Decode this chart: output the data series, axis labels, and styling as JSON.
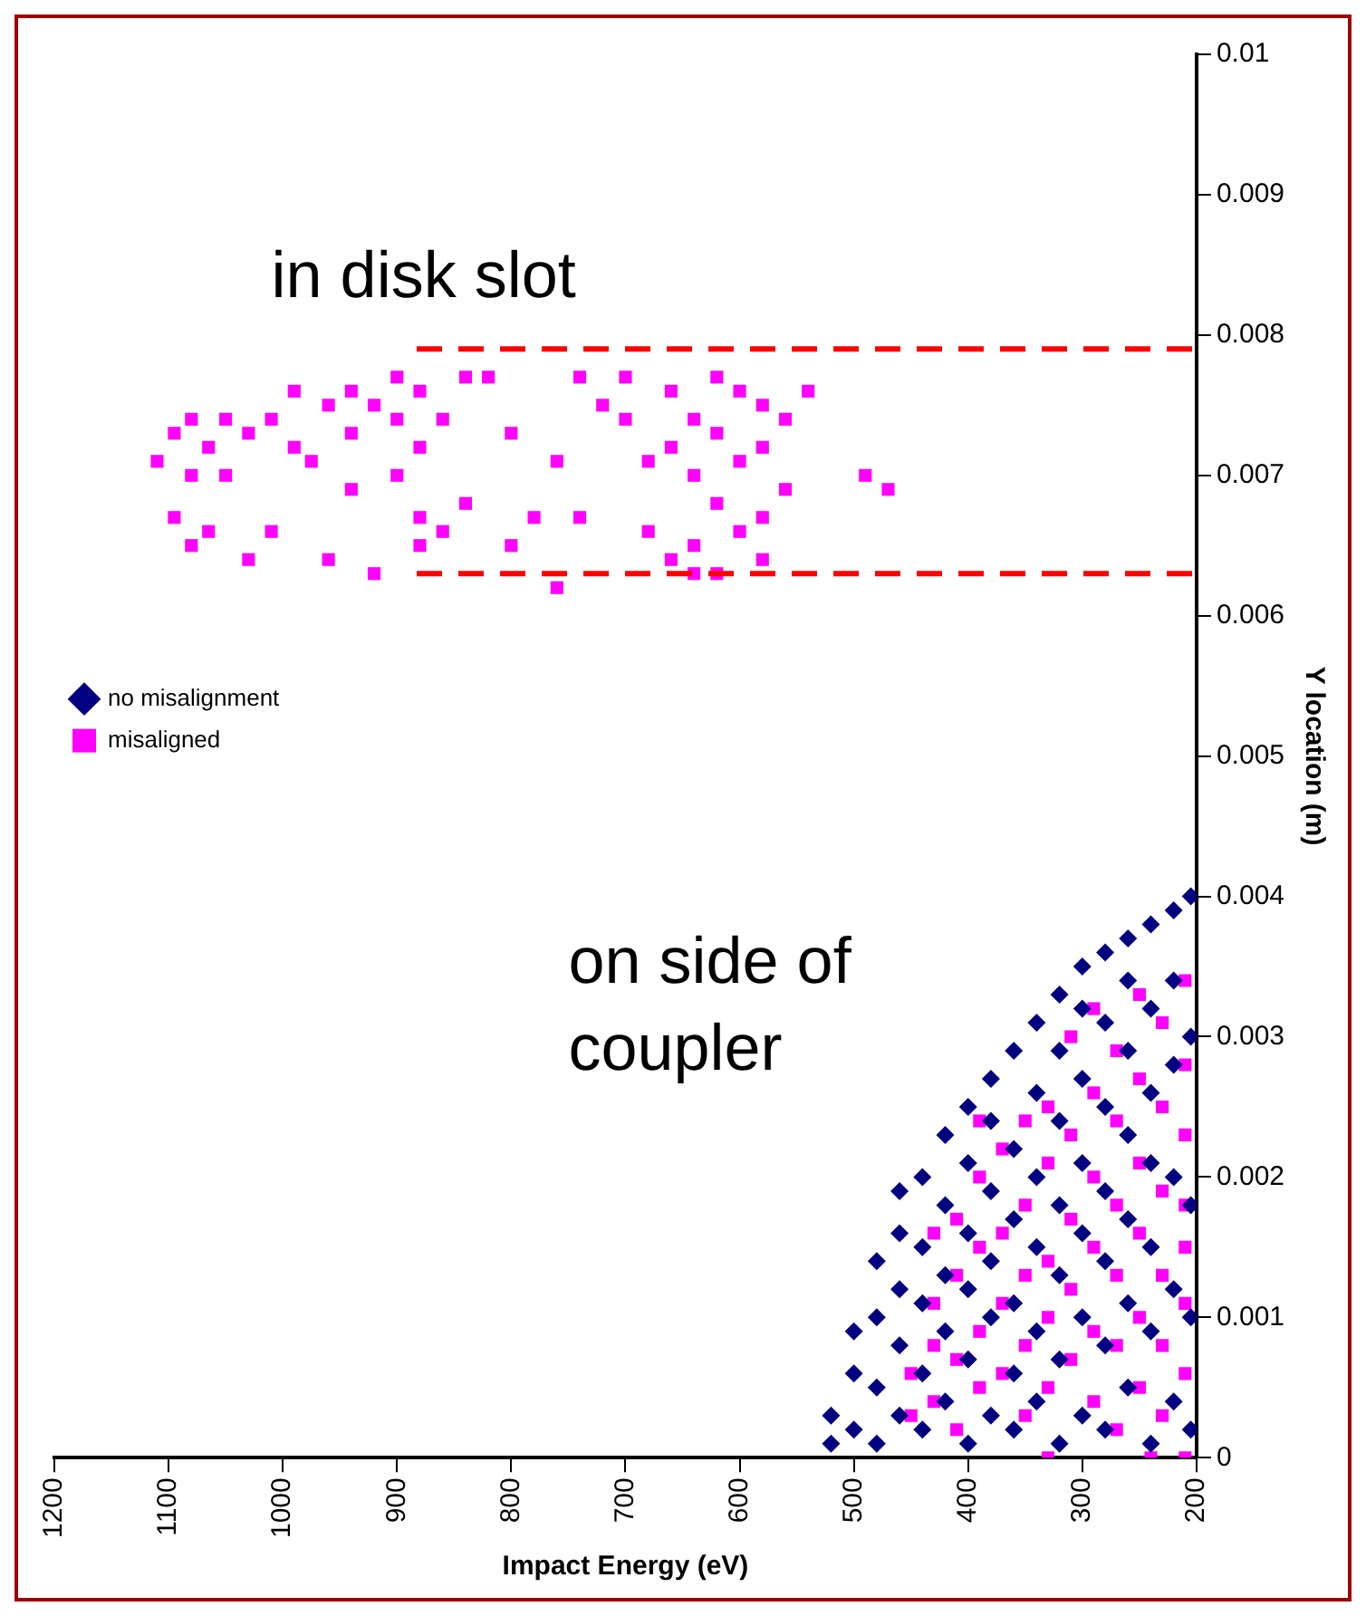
{
  "chart_data": {
    "type": "scatter",
    "xlabel": "Impact Energy (eV)",
    "ylabel": "Y location (m)",
    "xlim": [
      1200,
      200
    ],
    "xticks": [
      1200,
      1100,
      1000,
      900,
      800,
      700,
      600,
      500,
      400,
      300,
      200
    ],
    "ylim": [
      0,
      0.01
    ],
    "yticks": [
      0,
      0.001,
      0.002,
      0.003,
      0.004,
      0.005,
      0.006,
      0.007,
      0.008,
      0.009,
      0.01
    ],
    "grid": false,
    "legend": "left",
    "series": [
      {
        "name": "no misalignment",
        "color": "#000080",
        "marker": "diamond",
        "x": [
          520,
          520,
          500,
          500,
          500,
          480,
          480,
          480,
          480,
          460,
          460,
          460,
          460,
          460,
          440,
          440,
          440,
          440,
          440,
          420,
          420,
          420,
          420,
          420,
          400,
          400,
          400,
          400,
          400,
          400,
          380,
          380,
          380,
          380,
          380,
          380,
          360,
          360,
          360,
          360,
          360,
          360,
          340,
          340,
          340,
          340,
          340,
          340,
          320,
          320,
          320,
          320,
          320,
          320,
          320,
          300,
          300,
          300,
          300,
          300,
          300,
          300,
          280,
          280,
          280,
          280,
          280,
          280,
          280,
          260,
          260,
          260,
          260,
          260,
          260,
          260,
          240,
          240,
          240,
          240,
          240,
          240,
          240,
          220,
          220,
          220,
          220,
          220,
          220,
          205,
          205,
          205,
          205,
          205
        ],
        "values": [
          0.0001,
          0.0003,
          0.0002,
          0.0006,
          0.0009,
          0.0001,
          0.0005,
          0.001,
          0.0014,
          0.0003,
          0.0008,
          0.0012,
          0.0016,
          0.0019,
          0.0002,
          0.0006,
          0.0011,
          0.0015,
          0.002,
          0.0004,
          0.0009,
          0.0013,
          0.0018,
          0.0023,
          0.0001,
          0.0007,
          0.0012,
          0.0016,
          0.0021,
          0.0025,
          0.0003,
          0.001,
          0.0014,
          0.0019,
          0.0024,
          0.0027,
          0.0002,
          0.0006,
          0.0011,
          0.0017,
          0.0022,
          0.0029,
          0.0004,
          0.0009,
          0.0015,
          0.002,
          0.0026,
          0.0031,
          0.0001,
          0.0007,
          0.0013,
          0.0018,
          0.0024,
          0.0029,
          0.0033,
          0.0003,
          0.001,
          0.0016,
          0.0021,
          0.0027,
          0.0032,
          0.0035,
          0.0002,
          0.0008,
          0.0014,
          0.0019,
          0.0025,
          0.0031,
          0.0036,
          0.0005,
          0.0011,
          0.0017,
          0.0023,
          0.0029,
          0.0034,
          0.0037,
          0.0001,
          0.0009,
          0.0015,
          0.0021,
          0.0026,
          0.0032,
          0.0038,
          0.0004,
          0.0012,
          0.002,
          0.0028,
          0.0034,
          0.0039,
          0.0002,
          0.001,
          0.0018,
          0.003,
          0.004
        ]
      },
      {
        "name": "misaligned",
        "color": "#ff00ff",
        "marker": "square",
        "x": [
          450,
          450,
          430,
          430,
          430,
          430,
          410,
          410,
          410,
          410,
          390,
          390,
          390,
          390,
          390,
          370,
          370,
          370,
          370,
          350,
          350,
          350,
          350,
          350,
          330,
          330,
          330,
          330,
          330,
          330,
          310,
          310,
          310,
          310,
          310,
          290,
          290,
          290,
          290,
          290,
          290,
          270,
          270,
          270,
          270,
          270,
          270,
          250,
          250,
          250,
          250,
          250,
          250,
          240,
          230,
          230,
          230,
          230,
          230,
          230,
          210,
          210,
          210,
          210,
          210,
          210,
          210,
          210,
          1110,
          1095,
          1095,
          1080,
          1080,
          1080,
          1065,
          1065,
          1050,
          1050,
          1030,
          1030,
          1010,
          1010,
          990,
          990,
          975,
          960,
          960,
          940,
          940,
          940,
          920,
          920,
          900,
          900,
          900,
          880,
          880,
          880,
          880,
          860,
          860,
          840,
          840,
          820,
          800,
          800,
          780,
          760,
          760,
          740,
          740,
          720,
          700,
          700,
          680,
          680,
          660,
          660,
          660,
          640,
          640,
          640,
          640,
          620,
          620,
          620,
          620,
          600,
          600,
          600,
          580,
          580,
          580,
          580,
          560,
          560,
          540,
          490,
          470
        ],
        "values": [
          0.0003,
          0.0006,
          0.0004,
          0.0008,
          0.0011,
          0.0016,
          0.0002,
          0.0007,
          0.0013,
          0.0017,
          0.0005,
          0.0009,
          0.0015,
          0.002,
          0.0024,
          0.0006,
          0.0011,
          0.0016,
          0.0022,
          0.0003,
          0.0008,
          0.0013,
          0.0018,
          0.0024,
          0,
          0.0005,
          0.001,
          0.0014,
          0.0021,
          0.0025,
          0.0007,
          0.0012,
          0.0017,
          0.0023,
          0.003,
          0.0004,
          0.0009,
          0.0015,
          0.002,
          0.0026,
          0.0032,
          0.0002,
          0.0008,
          0.0013,
          0.0018,
          0.0024,
          0.0029,
          0.0005,
          0.001,
          0.0016,
          0.0021,
          0.0027,
          0.0033,
          0,
          0.0003,
          0.0008,
          0.0013,
          0.0019,
          0.0025,
          0.0031,
          0,
          0.0006,
          0.0011,
          0.0015,
          0.0018,
          0.0023,
          0.0028,
          0.0034,
          0.0071,
          0.0073,
          0.0067,
          0.0074,
          0.007,
          0.0065,
          0.0072,
          0.0066,
          0.0074,
          0.007,
          0.0073,
          0.0064,
          0.0074,
          0.0066,
          0.0076,
          0.0072,
          0.0071,
          0.0075,
          0.0064,
          0.0076,
          0.0073,
          0.0069,
          0.0063,
          0.0075,
          0.0077,
          0.0074,
          0.007,
          0.0076,
          0.0072,
          0.0067,
          0.0065,
          0.0066,
          0.0074,
          0.0077,
          0.0068,
          0.0077,
          0.0073,
          0.0065,
          0.0067,
          0.0071,
          0.0062,
          0.0077,
          0.0067,
          0.0075,
          0.0077,
          0.0074,
          0.0066,
          0.0071,
          0.0076,
          0.0072,
          0.0064,
          0.0074,
          0.007,
          0.0065,
          0.0063,
          0.0077,
          0.0073,
          0.0068,
          0.0063,
          0.0076,
          0.0071,
          0.0066,
          0.0075,
          0.0072,
          0.0067,
          0.0064,
          0.0074,
          0.0069,
          0.0076,
          0.007,
          0.0069
        ]
      }
    ],
    "ref_lines": [
      {
        "axis": "y",
        "value": 0.0079,
        "color": "#ff0000",
        "line_style": "dashed"
      },
      {
        "axis": "y",
        "value": 0.0063,
        "color": "#ff0000",
        "line_style": "dashed"
      }
    ],
    "annotations": [
      "in disk slot",
      "on side of coupler"
    ]
  }
}
